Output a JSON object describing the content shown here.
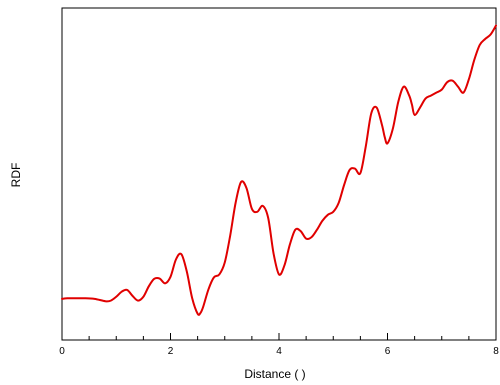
{
  "chart_data": {
    "type": "line",
    "xlabel": "Distance (   )",
    "ylabel": "RDF",
    "xlim": [
      0,
      8
    ],
    "ylim": [
      0,
      1
    ],
    "grid": false,
    "x_ticks": [
      "0",
      "2",
      "4",
      "6",
      "8"
    ],
    "series": [
      {
        "color": "#e00000",
        "x": [
          0.0,
          0.1,
          0.2,
          0.4,
          0.6,
          0.8,
          0.9,
          1.0,
          1.1,
          1.2,
          1.3,
          1.4,
          1.5,
          1.6,
          1.7,
          1.8,
          1.9,
          2.0,
          2.1,
          2.2,
          2.3,
          2.4,
          2.5,
          2.55,
          2.6,
          2.7,
          2.8,
          2.9,
          3.0,
          3.1,
          3.2,
          3.3,
          3.4,
          3.5,
          3.6,
          3.7,
          3.8,
          3.9,
          4.0,
          4.1,
          4.2,
          4.3,
          4.4,
          4.5,
          4.6,
          4.7,
          4.8,
          4.9,
          5.0,
          5.1,
          5.2,
          5.3,
          5.4,
          5.5,
          5.6,
          5.7,
          5.8,
          5.9,
          5.95,
          6.0,
          6.1,
          6.2,
          6.3,
          6.4,
          6.45,
          6.5,
          6.6,
          6.7,
          6.8,
          6.9,
          7.0,
          7.1,
          7.2,
          7.3,
          7.4,
          7.5,
          7.6,
          7.7,
          7.8,
          7.9,
          8.0
        ],
        "values": [
          0.118,
          0.12,
          0.12,
          0.12,
          0.118,
          0.11,
          0.112,
          0.125,
          0.142,
          0.148,
          0.128,
          0.112,
          0.125,
          0.16,
          0.185,
          0.186,
          0.17,
          0.192,
          0.25,
          0.268,
          0.21,
          0.12,
          0.068,
          0.07,
          0.09,
          0.15,
          0.19,
          0.2,
          0.24,
          0.33,
          0.44,
          0.51,
          0.49,
          0.42,
          0.41,
          0.43,
          0.39,
          0.27,
          0.2,
          0.23,
          0.3,
          0.35,
          0.345,
          0.32,
          0.325,
          0.35,
          0.38,
          0.4,
          0.41,
          0.44,
          0.5,
          0.55,
          0.555,
          0.54,
          0.63,
          0.74,
          0.76,
          0.7,
          0.66,
          0.64,
          0.69,
          0.78,
          0.83,
          0.8,
          0.77,
          0.735,
          0.76,
          0.79,
          0.8,
          0.81,
          0.82,
          0.845,
          0.85,
          0.83,
          0.81,
          0.855,
          0.92,
          0.97,
          0.99,
          1.005,
          1.035
        ]
      }
    ]
  }
}
